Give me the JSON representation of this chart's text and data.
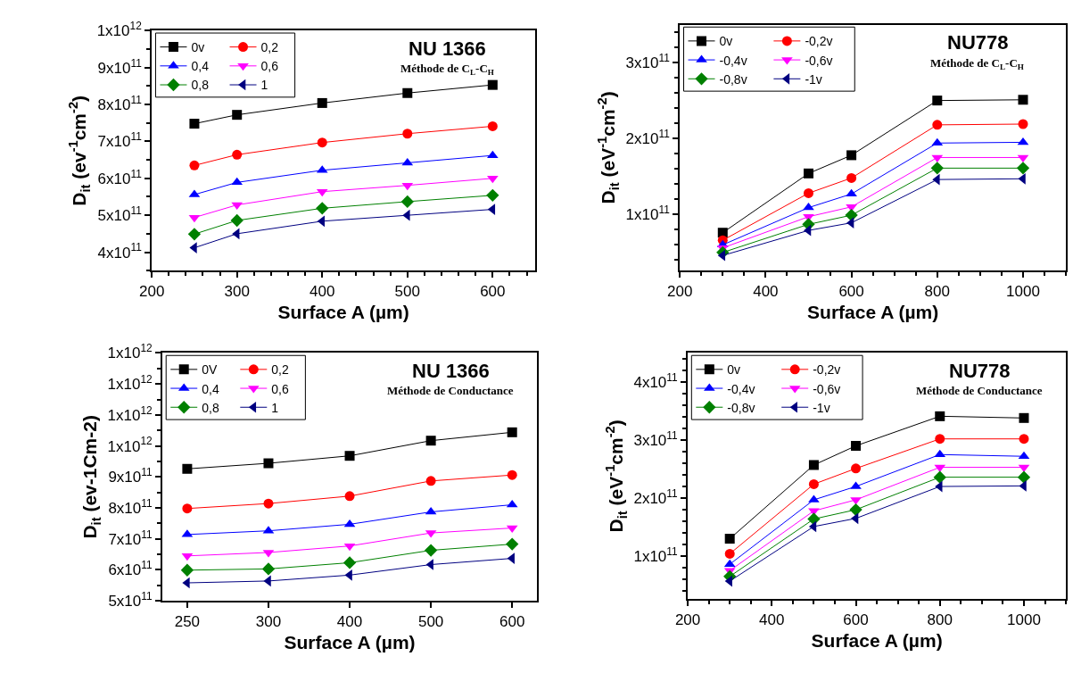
{
  "chart_data": [
    {
      "type": "line",
      "title": "NU 1366",
      "subtitle": "Méthode de C$_{L}$-C$_{H}$",
      "xlabel": "Surface A (µm)",
      "ylabel": "D$_{it}$ (ev$^{-1}$cm$^{-2}$)",
      "x": [
        250,
        300,
        400,
        500,
        600
      ],
      "xlim": [
        200,
        650
      ],
      "xticks": [
        200,
        300,
        400,
        500,
        600
      ],
      "ylim": [
        350000000000.0,
        1000000000000.0
      ],
      "yticks": [
        {
          "value": 400000000000.0,
          "label": "4x10$^{11}$"
        },
        {
          "value": 500000000000.0,
          "label": "5x10$^{11}$"
        },
        {
          "value": 600000000000.0,
          "label": "6x10$^{11}$"
        },
        {
          "value": 700000000000.0,
          "label": "7x10$^{11}$"
        },
        {
          "value": 800000000000.0,
          "label": "8x10$^{11}$"
        },
        {
          "value": 900000000000.0,
          "label": "9x10$^{11}$"
        },
        {
          "value": 1000000000000.0,
          "label": "1x10$^{12}$"
        }
      ],
      "legend": "top left",
      "series": [
        {
          "name": "0v",
          "color": "#000000",
          "marker": "square",
          "values": [
            748000000000.0,
            772000000000.0,
            804000000000.0,
            831000000000.0,
            853000000000.0
          ]
        },
        {
          "name": "0,2",
          "color": "#ff0000",
          "marker": "circle",
          "values": [
            635000000000.0,
            664000000000.0,
            697000000000.0,
            721000000000.0,
            741000000000.0
          ]
        },
        {
          "name": "0,4",
          "color": "#0000ff",
          "marker": "triangle",
          "values": [
            556000000000.0,
            589000000000.0,
            622000000000.0,
            642000000000.0,
            662000000000.0
          ]
        },
        {
          "name": "0,6",
          "color": "#ff00ff",
          "marker": "triangle-down",
          "values": [
            494000000000.0,
            528000000000.0,
            564000000000.0,
            581000000000.0,
            600000000000.0
          ]
        },
        {
          "name": "0,8",
          "color": "#008000",
          "marker": "diamond",
          "values": [
            449000000000.0,
            486000000000.0,
            519000000000.0,
            537000000000.0,
            554000000000.0
          ]
        },
        {
          "name": "1",
          "color": "#000080",
          "marker": "triangle-left",
          "values": [
            412000000000.0,
            450000000000.0,
            484000000000.0,
            500000000000.0,
            516000000000.0
          ]
        }
      ]
    },
    {
      "type": "line",
      "title": "NU778",
      "subtitle": "Méthode de C$_{L}$-C$_{H}$",
      "xlabel": "Surface A (µm)",
      "ylabel": "D$_{it}$ (eV$^{-1}$cm$^{-2}$)",
      "x": [
        300,
        500,
        600,
        800,
        1000
      ],
      "xlim": [
        200,
        1100
      ],
      "xticks": [
        200,
        400,
        600,
        800,
        1000
      ],
      "ylim": [
        26000000000.0,
        350000000000.0
      ],
      "yticks": [
        {
          "value": 100000000000.0,
          "label": "1x10$^{11}$"
        },
        {
          "value": 200000000000.0,
          "label": "2x10$^{11}$"
        },
        {
          "value": 300000000000.0,
          "label": "3x10$^{11}$"
        }
      ],
      "legend": "top left",
      "series": [
        {
          "name": "0v",
          "color": "#000000",
          "marker": "square",
          "values": [
            76000000000.0,
            154000000000.0,
            178000000000.0,
            250000000000.0,
            251000000000.0
          ]
        },
        {
          "name": "-0,2v",
          "color": "#ff0000",
          "marker": "circle",
          "values": [
            66000000000.0,
            128000000000.0,
            148000000000.0,
            218000000000.0,
            219000000000.0
          ]
        },
        {
          "name": "-0,4v",
          "color": "#0000ff",
          "marker": "triangle",
          "values": [
            60000000000.0,
            109000000000.0,
            127000000000.0,
            194000000000.0,
            195000000000.0
          ]
        },
        {
          "name": "-0,6v",
          "color": "#ff00ff",
          "marker": "triangle-down",
          "values": [
            56000000000.0,
            97000000000.0,
            110000000000.0,
            175000000000.0,
            175000000000.0
          ]
        },
        {
          "name": "-0,8v",
          "color": "#008000",
          "marker": "diamond",
          "values": [
            50000000000.0,
            87000000000.0,
            99000000000.0,
            161000000000.0,
            161000000000.0
          ]
        },
        {
          "name": "-1v",
          "color": "#000080",
          "marker": "triangle-left",
          "values": [
            46000000000.0,
            79000000000.0,
            89000000000.0,
            146000000000.0,
            147000000000.0
          ]
        }
      ]
    },
    {
      "type": "line",
      "title": "NU 1366",
      "subtitle": "Méthode de Conductance",
      "xlabel": "Surface A (µm)",
      "ylabel": "D$_{it}$ (ev-1Cm-2)",
      "categories": [
        "250",
        "300",
        "400",
        "500",
        "600"
      ],
      "ylim": [
        500000000000.0,
        1300000000000.0
      ],
      "yticks": [
        {
          "value": 500000000000.0,
          "label": "5x10$^{11}$"
        },
        {
          "value": 600000000000.0,
          "label": "6x10$^{11}$"
        },
        {
          "value": 700000000000.0,
          "label": "7x10$^{11}$"
        },
        {
          "value": 800000000000.0,
          "label": "8x10$^{11}$"
        },
        {
          "value": 900000000000.0,
          "label": "9x10$^{11}$"
        },
        {
          "value": 1000000000000.0,
          "label": "1x10$^{12}$"
        },
        {
          "value": 1100000000000.0,
          "label": "1x10$^{12}$"
        },
        {
          "value": 1200000000000.0,
          "label": "1x10$^{12}$"
        },
        {
          "value": 1300000000000.0,
          "label": "1x10$^{12}$"
        }
      ],
      "legend": "top left",
      "series": [
        {
          "name": "0V",
          "color": "#000000",
          "marker": "square",
          "values": [
            926000000000.0,
            944000000000.0,
            968000000000.0,
            1017000000000.0,
            1044000000000.0
          ]
        },
        {
          "name": "0,2",
          "color": "#ff0000",
          "marker": "circle",
          "values": [
            798000000000.0,
            814000000000.0,
            838000000000.0,
            887000000000.0,
            906000000000.0
          ]
        },
        {
          "name": "0,4",
          "color": "#0000ff",
          "marker": "triangle",
          "values": [
            714000000000.0,
            726000000000.0,
            747000000000.0,
            787000000000.0,
            810000000000.0
          ]
        },
        {
          "name": "0,6",
          "color": "#ff00ff",
          "marker": "triangle-down",
          "values": [
            645000000000.0,
            656000000000.0,
            677000000000.0,
            719000000000.0,
            735000000000.0
          ]
        },
        {
          "name": "0,8",
          "color": "#008000",
          "marker": "diamond",
          "values": [
            599000000000.0,
            603000000000.0,
            623000000000.0,
            663000000000.0,
            683000000000.0
          ]
        },
        {
          "name": "1",
          "color": "#000080",
          "marker": "triangle-left",
          "values": [
            558000000000.0,
            564000000000.0,
            583000000000.0,
            617000000000.0,
            637000000000.0
          ]
        }
      ]
    },
    {
      "type": "line",
      "title": "NU778",
      "subtitle": "Méthode de Conductance",
      "xlabel": "Surface A (µm)",
      "ylabel": "D$_{it}$ (eV$^{-1}$cm$^{-2}$)",
      "x": [
        300,
        500,
        600,
        800,
        1000
      ],
      "xlim": [
        200,
        1100
      ],
      "xticks": [
        200,
        400,
        600,
        800,
        1000
      ],
      "ylim": [
        26000000000.0,
        450000000000.0
      ],
      "yticks": [
        {
          "value": 100000000000.0,
          "label": "1x10$^{11}$"
        },
        {
          "value": 200000000000.0,
          "label": "2x10$^{11}$"
        },
        {
          "value": 300000000000.0,
          "label": "3x10$^{11}$"
        },
        {
          "value": 400000000000.0,
          "label": "4x10$^{11}$"
        }
      ],
      "legend": "top left",
      "series": [
        {
          "name": "0v",
          "color": "#000000",
          "marker": "square",
          "values": [
            130000000000.0,
            257000000000.0,
            290000000000.0,
            341000000000.0,
            338000000000.0
          ]
        },
        {
          "name": "-0,2v",
          "color": "#ff0000",
          "marker": "circle",
          "values": [
            104000000000.0,
            224000000000.0,
            251000000000.0,
            302000000000.0,
            302000000000.0
          ]
        },
        {
          "name": "-0,4v",
          "color": "#0000ff",
          "marker": "triangle",
          "values": [
            86000000000.0,
            197000000000.0,
            220000000000.0,
            275000000000.0,
            272000000000.0
          ]
        },
        {
          "name": "-0,6v",
          "color": "#ff00ff",
          "marker": "triangle-down",
          "values": [
            75000000000.0,
            178000000000.0,
            197000000000.0,
            253000000000.0,
            253000000000.0
          ]
        },
        {
          "name": "-0,8v",
          "color": "#008000",
          "marker": "diamond",
          "values": [
            65000000000.0,
            164000000000.0,
            180000000000.0,
            236000000000.0,
            236000000000.0
          ]
        },
        {
          "name": "-1v",
          "color": "#000080",
          "marker": "triangle-left",
          "values": [
            57000000000.0,
            151000000000.0,
            165000000000.0,
            220000000000.0,
            221000000000.0
          ]
        }
      ]
    }
  ]
}
